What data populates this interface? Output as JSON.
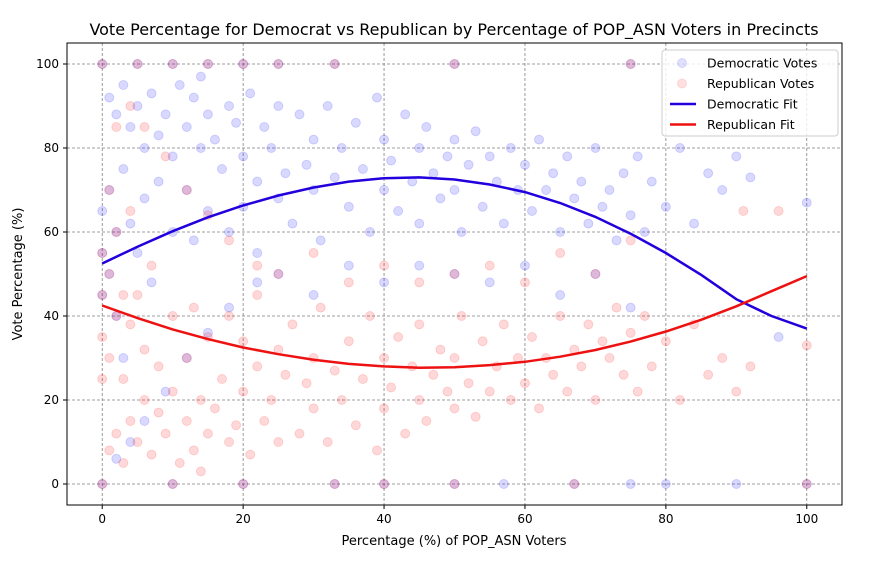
{
  "chart_data": {
    "type": "scatter",
    "title": "Vote Percentage for Democrat vs Republican by Percentage of POP_ASN Voters in Precincts",
    "xlabel": "Percentage (%) of POP_ASN Voters",
    "ylabel": "Vote Percentage (%)",
    "xlim": [
      -5,
      105
    ],
    "ylim": [
      -5,
      105
    ],
    "xticks": [
      0,
      20,
      40,
      60,
      80,
      100
    ],
    "yticks": [
      0,
      20,
      40,
      60,
      80,
      100
    ],
    "grid": true,
    "legend_position": "top-right",
    "series": [
      {
        "name": "Democratic Votes",
        "kind": "scatter",
        "color": "#0000ff",
        "alpha": 0.06,
        "points": [
          [
            0,
            100
          ],
          [
            0,
            0
          ],
          [
            0,
            65
          ],
          [
            0,
            55
          ],
          [
            0,
            45
          ],
          [
            1,
            92
          ],
          [
            1,
            70
          ],
          [
            1,
            50
          ],
          [
            2,
            88
          ],
          [
            2,
            60
          ],
          [
            2,
            40
          ],
          [
            3,
            95
          ],
          [
            3,
            75
          ],
          [
            3,
            30
          ],
          [
            4,
            85
          ],
          [
            4,
            62
          ],
          [
            5,
            90
          ],
          [
            5,
            55
          ],
          [
            6,
            80
          ],
          [
            6,
            68
          ],
          [
            7,
            93
          ],
          [
            7,
            48
          ],
          [
            8,
            83
          ],
          [
            8,
            72
          ],
          [
            9,
            88
          ],
          [
            10,
            78
          ],
          [
            10,
            60
          ],
          [
            11,
            95
          ],
          [
            12,
            85
          ],
          [
            12,
            70
          ],
          [
            13,
            92
          ],
          [
            13,
            58
          ],
          [
            14,
            97
          ],
          [
            14,
            80
          ],
          [
            15,
            88
          ],
          [
            15,
            65
          ],
          [
            16,
            82
          ],
          [
            17,
            75
          ],
          [
            18,
            90
          ],
          [
            18,
            60
          ],
          [
            19,
            86
          ],
          [
            20,
            78
          ],
          [
            20,
            66
          ],
          [
            21,
            93
          ],
          [
            22,
            72
          ],
          [
            22,
            55
          ],
          [
            23,
            85
          ],
          [
            24,
            80
          ],
          [
            25,
            68
          ],
          [
            25,
            90
          ],
          [
            26,
            74
          ],
          [
            27,
            62
          ],
          [
            28,
            88
          ],
          [
            29,
            76
          ],
          [
            30,
            82
          ],
          [
            30,
            70
          ],
          [
            31,
            58
          ],
          [
            32,
            90
          ],
          [
            33,
            73
          ],
          [
            34,
            80
          ],
          [
            35,
            66
          ],
          [
            36,
            86
          ],
          [
            37,
            75
          ],
          [
            38,
            60
          ],
          [
            39,
            92
          ],
          [
            40,
            82
          ],
          [
            40,
            70
          ],
          [
            41,
            77
          ],
          [
            42,
            65
          ],
          [
            43,
            88
          ],
          [
            44,
            72
          ],
          [
            45,
            80
          ],
          [
            45,
            62
          ],
          [
            46,
            85
          ],
          [
            47,
            74
          ],
          [
            48,
            68
          ],
          [
            49,
            78
          ],
          [
            50,
            82
          ],
          [
            50,
            70
          ],
          [
            51,
            60
          ],
          [
            52,
            76
          ],
          [
            53,
            84
          ],
          [
            54,
            66
          ],
          [
            55,
            78
          ],
          [
            56,
            72
          ],
          [
            57,
            62
          ],
          [
            58,
            80
          ],
          [
            59,
            70
          ],
          [
            60,
            76
          ],
          [
            61,
            65
          ],
          [
            62,
            82
          ],
          [
            63,
            70
          ],
          [
            64,
            74
          ],
          [
            65,
            60
          ],
          [
            66,
            78
          ],
          [
            67,
            68
          ],
          [
            68,
            72
          ],
          [
            69,
            62
          ],
          [
            70,
            80
          ],
          [
            71,
            66
          ],
          [
            72,
            70
          ],
          [
            73,
            58
          ],
          [
            74,
            74
          ],
          [
            75,
            64
          ],
          [
            76,
            78
          ],
          [
            77,
            60
          ],
          [
            78,
            72
          ],
          [
            80,
            66
          ],
          [
            82,
            80
          ],
          [
            84,
            62
          ],
          [
            86,
            74
          ],
          [
            88,
            70
          ],
          [
            90,
            78
          ],
          [
            92,
            73
          ],
          [
            100,
            67
          ],
          [
            96,
            35
          ],
          [
            4,
            10
          ],
          [
            2,
            6
          ],
          [
            6,
            15
          ],
          [
            9,
            22
          ],
          [
            12,
            30
          ],
          [
            15,
            36
          ],
          [
            18,
            42
          ],
          [
            22,
            48
          ],
          [
            25,
            50
          ],
          [
            30,
            45
          ],
          [
            35,
            52
          ],
          [
            40,
            48
          ],
          [
            45,
            52
          ],
          [
            50,
            50
          ],
          [
            55,
            48
          ],
          [
            60,
            52
          ],
          [
            65,
            45
          ],
          [
            70,
            50
          ],
          [
            75,
            42
          ],
          [
            10,
            0
          ],
          [
            20,
            0
          ],
          [
            33,
            0
          ],
          [
            40,
            0
          ],
          [
            50,
            0
          ],
          [
            57,
            0
          ],
          [
            67,
            0
          ],
          [
            75,
            0
          ],
          [
            80,
            0
          ],
          [
            90,
            0
          ],
          [
            100,
            0
          ],
          [
            5,
            100
          ],
          [
            10,
            100
          ],
          [
            15,
            100
          ],
          [
            20,
            100
          ],
          [
            25,
            100
          ],
          [
            33,
            100
          ],
          [
            50,
            100
          ],
          [
            75,
            100
          ]
        ]
      },
      {
        "name": "Republican Votes",
        "kind": "scatter",
        "color": "#ff0000",
        "alpha": 0.06,
        "points": [
          [
            0,
            100
          ],
          [
            0,
            0
          ],
          [
            0,
            35
          ],
          [
            0,
            45
          ],
          [
            0,
            55
          ],
          [
            0,
            25
          ],
          [
            1,
            8
          ],
          [
            1,
            30
          ],
          [
            1,
            50
          ],
          [
            1,
            70
          ],
          [
            2,
            12
          ],
          [
            2,
            40
          ],
          [
            2,
            60
          ],
          [
            2,
            85
          ],
          [
            3,
            5
          ],
          [
            3,
            25
          ],
          [
            3,
            45
          ],
          [
            4,
            15
          ],
          [
            4,
            38
          ],
          [
            4,
            65
          ],
          [
            5,
            10
          ],
          [
            5,
            45
          ],
          [
            6,
            20
          ],
          [
            6,
            32
          ],
          [
            7,
            7
          ],
          [
            7,
            52
          ],
          [
            8,
            17
          ],
          [
            8,
            28
          ],
          [
            9,
            12
          ],
          [
            10,
            22
          ],
          [
            10,
            40
          ],
          [
            11,
            5
          ],
          [
            12,
            15
          ],
          [
            12,
            30
          ],
          [
            13,
            8
          ],
          [
            13,
            42
          ],
          [
            14,
            3
          ],
          [
            14,
            20
          ],
          [
            15,
            12
          ],
          [
            15,
            35
          ],
          [
            16,
            18
          ],
          [
            17,
            25
          ],
          [
            18,
            10
          ],
          [
            18,
            40
          ],
          [
            19,
            14
          ],
          [
            20,
            22
          ],
          [
            20,
            34
          ],
          [
            21,
            7
          ],
          [
            22,
            28
          ],
          [
            22,
            45
          ],
          [
            23,
            15
          ],
          [
            24,
            20
          ],
          [
            25,
            32
          ],
          [
            25,
            10
          ],
          [
            26,
            26
          ],
          [
            27,
            38
          ],
          [
            28,
            12
          ],
          [
            29,
            24
          ],
          [
            30,
            18
          ],
          [
            30,
            30
          ],
          [
            31,
            42
          ],
          [
            32,
            10
          ],
          [
            33,
            27
          ],
          [
            34,
            20
          ],
          [
            35,
            34
          ],
          [
            36,
            14
          ],
          [
            37,
            25
          ],
          [
            38,
            40
          ],
          [
            39,
            8
          ],
          [
            40,
            18
          ],
          [
            40,
            30
          ],
          [
            41,
            23
          ],
          [
            42,
            35
          ],
          [
            43,
            12
          ],
          [
            44,
            28
          ],
          [
            45,
            20
          ],
          [
            45,
            38
          ],
          [
            46,
            15
          ],
          [
            47,
            26
          ],
          [
            48,
            32
          ],
          [
            49,
            22
          ],
          [
            50,
            18
          ],
          [
            50,
            30
          ],
          [
            51,
            40
          ],
          [
            52,
            24
          ],
          [
            53,
            16
          ],
          [
            54,
            34
          ],
          [
            55,
            22
          ],
          [
            56,
            28
          ],
          [
            57,
            38
          ],
          [
            58,
            20
          ],
          [
            59,
            30
          ],
          [
            60,
            24
          ],
          [
            61,
            35
          ],
          [
            62,
            18
          ],
          [
            63,
            30
          ],
          [
            64,
            26
          ],
          [
            65,
            40
          ],
          [
            66,
            22
          ],
          [
            67,
            32
          ],
          [
            68,
            28
          ],
          [
            69,
            38
          ],
          [
            70,
            20
          ],
          [
            71,
            34
          ],
          [
            72,
            30
          ],
          [
            73,
            42
          ],
          [
            74,
            26
          ],
          [
            75,
            36
          ],
          [
            76,
            22
          ],
          [
            77,
            40
          ],
          [
            78,
            28
          ],
          [
            80,
            34
          ],
          [
            82,
            20
          ],
          [
            84,
            38
          ],
          [
            86,
            26
          ],
          [
            88,
            30
          ],
          [
            90,
            22
          ],
          [
            92,
            28
          ],
          [
            100,
            33
          ],
          [
            96,
            65
          ],
          [
            91,
            65
          ],
          [
            4,
            90
          ],
          [
            6,
            85
          ],
          [
            9,
            78
          ],
          [
            12,
            70
          ],
          [
            15,
            64
          ],
          [
            18,
            58
          ],
          [
            22,
            52
          ],
          [
            25,
            50
          ],
          [
            30,
            55
          ],
          [
            35,
            48
          ],
          [
            40,
            52
          ],
          [
            45,
            48
          ],
          [
            50,
            50
          ],
          [
            55,
            52
          ],
          [
            60,
            48
          ],
          [
            65,
            55
          ],
          [
            70,
            50
          ],
          [
            75,
            58
          ],
          [
            10,
            0
          ],
          [
            20,
            0
          ],
          [
            33,
            0
          ],
          [
            40,
            0
          ],
          [
            50,
            0
          ],
          [
            67,
            0
          ],
          [
            100,
            0
          ],
          [
            5,
            100
          ],
          [
            10,
            100
          ],
          [
            15,
            100
          ],
          [
            20,
            100
          ],
          [
            25,
            100
          ],
          [
            33,
            100
          ],
          [
            50,
            100
          ],
          [
            75,
            100
          ]
        ]
      },
      {
        "name": "Democratic Fit",
        "kind": "line",
        "color": "#2200dd",
        "x": [
          0,
          5,
          10,
          15,
          20,
          25,
          30,
          35,
          40,
          45,
          50,
          55,
          60,
          65,
          70,
          75,
          80,
          85,
          90,
          95,
          100
        ],
        "y": [
          52.5,
          56.5,
          60.2,
          63.5,
          66.3,
          68.7,
          70.6,
          72.0,
          72.8,
          73.0,
          72.5,
          71.3,
          69.5,
          66.9,
          63.6,
          59.6,
          55.0,
          49.8,
          44.0,
          40.0,
          37.0
        ]
      },
      {
        "name": "Republican Fit",
        "kind": "line",
        "color": "#ee1111",
        "x": [
          0,
          5,
          10,
          15,
          20,
          25,
          30,
          35,
          40,
          45,
          50,
          55,
          60,
          65,
          70,
          75,
          80,
          85,
          90,
          95,
          100
        ],
        "y": [
          42.5,
          39.5,
          36.8,
          34.5,
          32.5,
          30.9,
          29.6,
          28.6,
          28.0,
          27.7,
          27.8,
          28.3,
          29.1,
          30.3,
          31.9,
          33.9,
          36.3,
          39.1,
          42.3,
          45.9,
          49.5
        ]
      }
    ]
  }
}
